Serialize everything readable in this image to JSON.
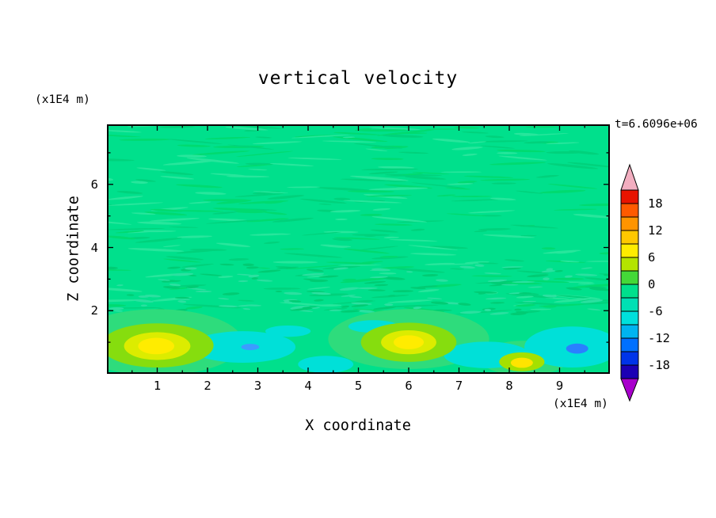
{
  "chart_data": {
    "type": "heatmap",
    "title": "vertical velocity",
    "xlabel": "X coordinate",
    "ylabel": "Z coordinate",
    "x_unit_label": "(x1E4 m)",
    "y_unit_label": "(x1E4 m)",
    "time_annotation": "t=6.6096e+06",
    "xlim": [
      0,
      10
    ],
    "ylim": [
      0,
      7.9
    ],
    "x_ticks": [
      "1",
      "2",
      "3",
      "4",
      "5",
      "6",
      "7",
      "8",
      "9"
    ],
    "x_minor_step": 0.5,
    "y_ticks": [
      "2",
      "4",
      "6"
    ],
    "y_minor_step": 1,
    "grid": false,
    "legend_position": "right-colorbar",
    "colorbar": {
      "tick_labels": [
        "18",
        "12",
        "6",
        "0",
        "-6",
        "-12",
        "-18"
      ],
      "level_step": 3,
      "top_level": 21,
      "bottom_level": -21,
      "segments_top_to_bottom": [
        "#e81400",
        "#ff5a00",
        "#ff9400",
        "#ffc800",
        "#ffec00",
        "#b4e400",
        "#44d838",
        "#00e08c",
        "#00e0b4",
        "#00e0dc",
        "#00b4f0",
        "#0070ff",
        "#0034e8",
        "#1c00b4"
      ],
      "arrow_top_color": "#f2aec0",
      "arrow_bottom_color": "#a800cc"
    },
    "field": {
      "background_color": "#00e08c",
      "streaks": [
        {
          "seed": 7,
          "count": 300,
          "region_z": [
            1.95,
            7.85
          ],
          "colors": [
            "#00d27c",
            "#27e69c",
            "#00da70"
          ],
          "len": [
            15,
            75
          ],
          "th": [
            1.4,
            3.4
          ]
        },
        {
          "seed": 13,
          "count": 140,
          "region_z": [
            1.9,
            3.5
          ],
          "colors": [
            "#00cc74",
            "#2ae0a0"
          ],
          "len": [
            8,
            30
          ],
          "th": [
            1.6,
            3.6
          ]
        }
      ],
      "features": [
        {
          "x": 1.0,
          "z": 1.0,
          "rx": 1.7,
          "rz": 1.05,
          "color": "#2edc7c"
        },
        {
          "x": 6.0,
          "z": 1.1,
          "rx": 1.6,
          "rz": 0.95,
          "color": "#2edc7c"
        },
        {
          "x": 8.3,
          "z": 0.5,
          "rx": 0.9,
          "rz": 0.55,
          "color": "#2edc7c"
        },
        {
          "x": 2.7,
          "z": 0.85,
          "rx": 1.05,
          "rz": 0.5,
          "color": "#00e0d8"
        },
        {
          "x": 4.35,
          "z": 0.3,
          "rx": 0.55,
          "rz": 0.27,
          "color": "#00e0d8"
        },
        {
          "x": 5.3,
          "z": 1.5,
          "rx": 0.5,
          "rz": 0.2,
          "color": "#00e0d8"
        },
        {
          "x": 3.6,
          "z": 1.35,
          "rx": 0.45,
          "rz": 0.18,
          "color": "#00e0d8"
        },
        {
          "x": 7.55,
          "z": 0.6,
          "rx": 0.85,
          "rz": 0.42,
          "color": "#00e0d8"
        },
        {
          "x": 9.25,
          "z": 0.85,
          "rx": 0.95,
          "rz": 0.65,
          "color": "#00e0d8"
        },
        {
          "x": 2.85,
          "z": 0.85,
          "rx": 0.18,
          "rz": 0.1,
          "color": "#3c9cff"
        },
        {
          "x": 9.35,
          "z": 0.8,
          "rx": 0.22,
          "rz": 0.16,
          "color": "#2a80ff"
        },
        {
          "x": 1.0,
          "z": 0.9,
          "rx": 1.12,
          "rz": 0.7,
          "color": "#86dd0e"
        },
        {
          "x": 1.0,
          "z": 0.88,
          "rx": 0.66,
          "rz": 0.44,
          "color": "#dcec00"
        },
        {
          "x": 0.98,
          "z": 0.88,
          "rx": 0.36,
          "rz": 0.26,
          "color": "#ffec00"
        },
        {
          "x": 6.0,
          "z": 1.0,
          "rx": 0.95,
          "rz": 0.62,
          "color": "#86dd0e"
        },
        {
          "x": 6.0,
          "z": 1.0,
          "rx": 0.55,
          "rz": 0.38,
          "color": "#dcec00"
        },
        {
          "x": 6.0,
          "z": 1.0,
          "rx": 0.3,
          "rz": 0.22,
          "color": "#ffec00"
        },
        {
          "x": 8.25,
          "z": 0.38,
          "rx": 0.45,
          "rz": 0.3,
          "color": "#a5e000"
        },
        {
          "x": 8.25,
          "z": 0.35,
          "rx": 0.22,
          "rz": 0.16,
          "color": "#ffe400"
        }
      ]
    }
  }
}
